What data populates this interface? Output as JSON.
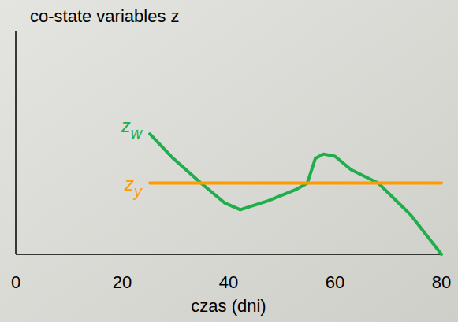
{
  "chart_data": {
    "type": "line",
    "y_label": "co-state variables z",
    "x_label": "czas (dni)",
    "x": [
      25.2,
      29.6,
      34.8,
      39.3,
      42.2,
      47.4,
      52.6,
      54.8,
      56.3,
      57.8,
      60,
      63,
      68.1,
      74.1,
      80
    ],
    "series": [
      {
        "name": "zw",
        "color": "#1fae4b",
        "values": [
          0.54,
          0.43,
          0.32,
          0.23,
          0.2,
          0.24,
          0.29,
          0.32,
          0.43,
          0.45,
          0.44,
          0.38,
          0.32,
          0.18,
          0.0
        ]
      },
      {
        "name": "zy",
        "color": "#ff9a00",
        "values": [
          0.32,
          0.32,
          0.32,
          0.32,
          0.32,
          0.32,
          0.32,
          0.32,
          0.32,
          0.32,
          0.32,
          0.32,
          0.32,
          0.32,
          0.32
        ]
      }
    ],
    "xlim": [
      0,
      80
    ],
    "xticks": [
      0,
      20,
      40,
      60,
      80
    ],
    "ylim": [
      0,
      1
    ],
    "tick_labels": "x",
    "grid": false
  }
}
